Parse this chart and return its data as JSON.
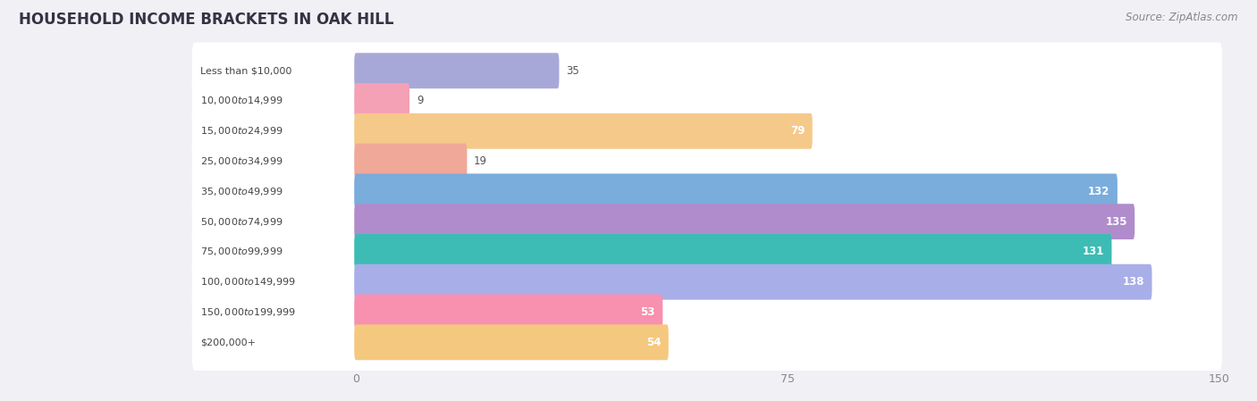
{
  "title": "HOUSEHOLD INCOME BRACKETS IN OAK HILL",
  "source": "Source: ZipAtlas.com",
  "categories": [
    "Less than $10,000",
    "$10,000 to $14,999",
    "$15,000 to $24,999",
    "$25,000 to $34,999",
    "$35,000 to $49,999",
    "$50,000 to $74,999",
    "$75,000 to $99,999",
    "$100,000 to $149,999",
    "$150,000 to $199,999",
    "$200,000+"
  ],
  "values": [
    35,
    9,
    79,
    19,
    132,
    135,
    131,
    138,
    53,
    54
  ],
  "bar_colors": [
    "#a8a8d8",
    "#f4a0b5",
    "#f5c98a",
    "#f0a898",
    "#7aacdc",
    "#b08ccc",
    "#3cbcb4",
    "#a8aee8",
    "#f890b0",
    "#f5c880"
  ],
  "xlim_max": 150,
  "xticks": [
    0,
    75,
    150
  ],
  "label_color_inside": "#ffffff",
  "label_color_outside": "#555555",
  "inside_threshold": 50,
  "background_color": "#f0f0f5",
  "bar_background_color": "#ffffff",
  "title_fontsize": 12,
  "source_fontsize": 8.5,
  "value_fontsize": 8.5,
  "category_fontsize": 8,
  "tick_fontsize": 9,
  "tick_color": "#888888"
}
